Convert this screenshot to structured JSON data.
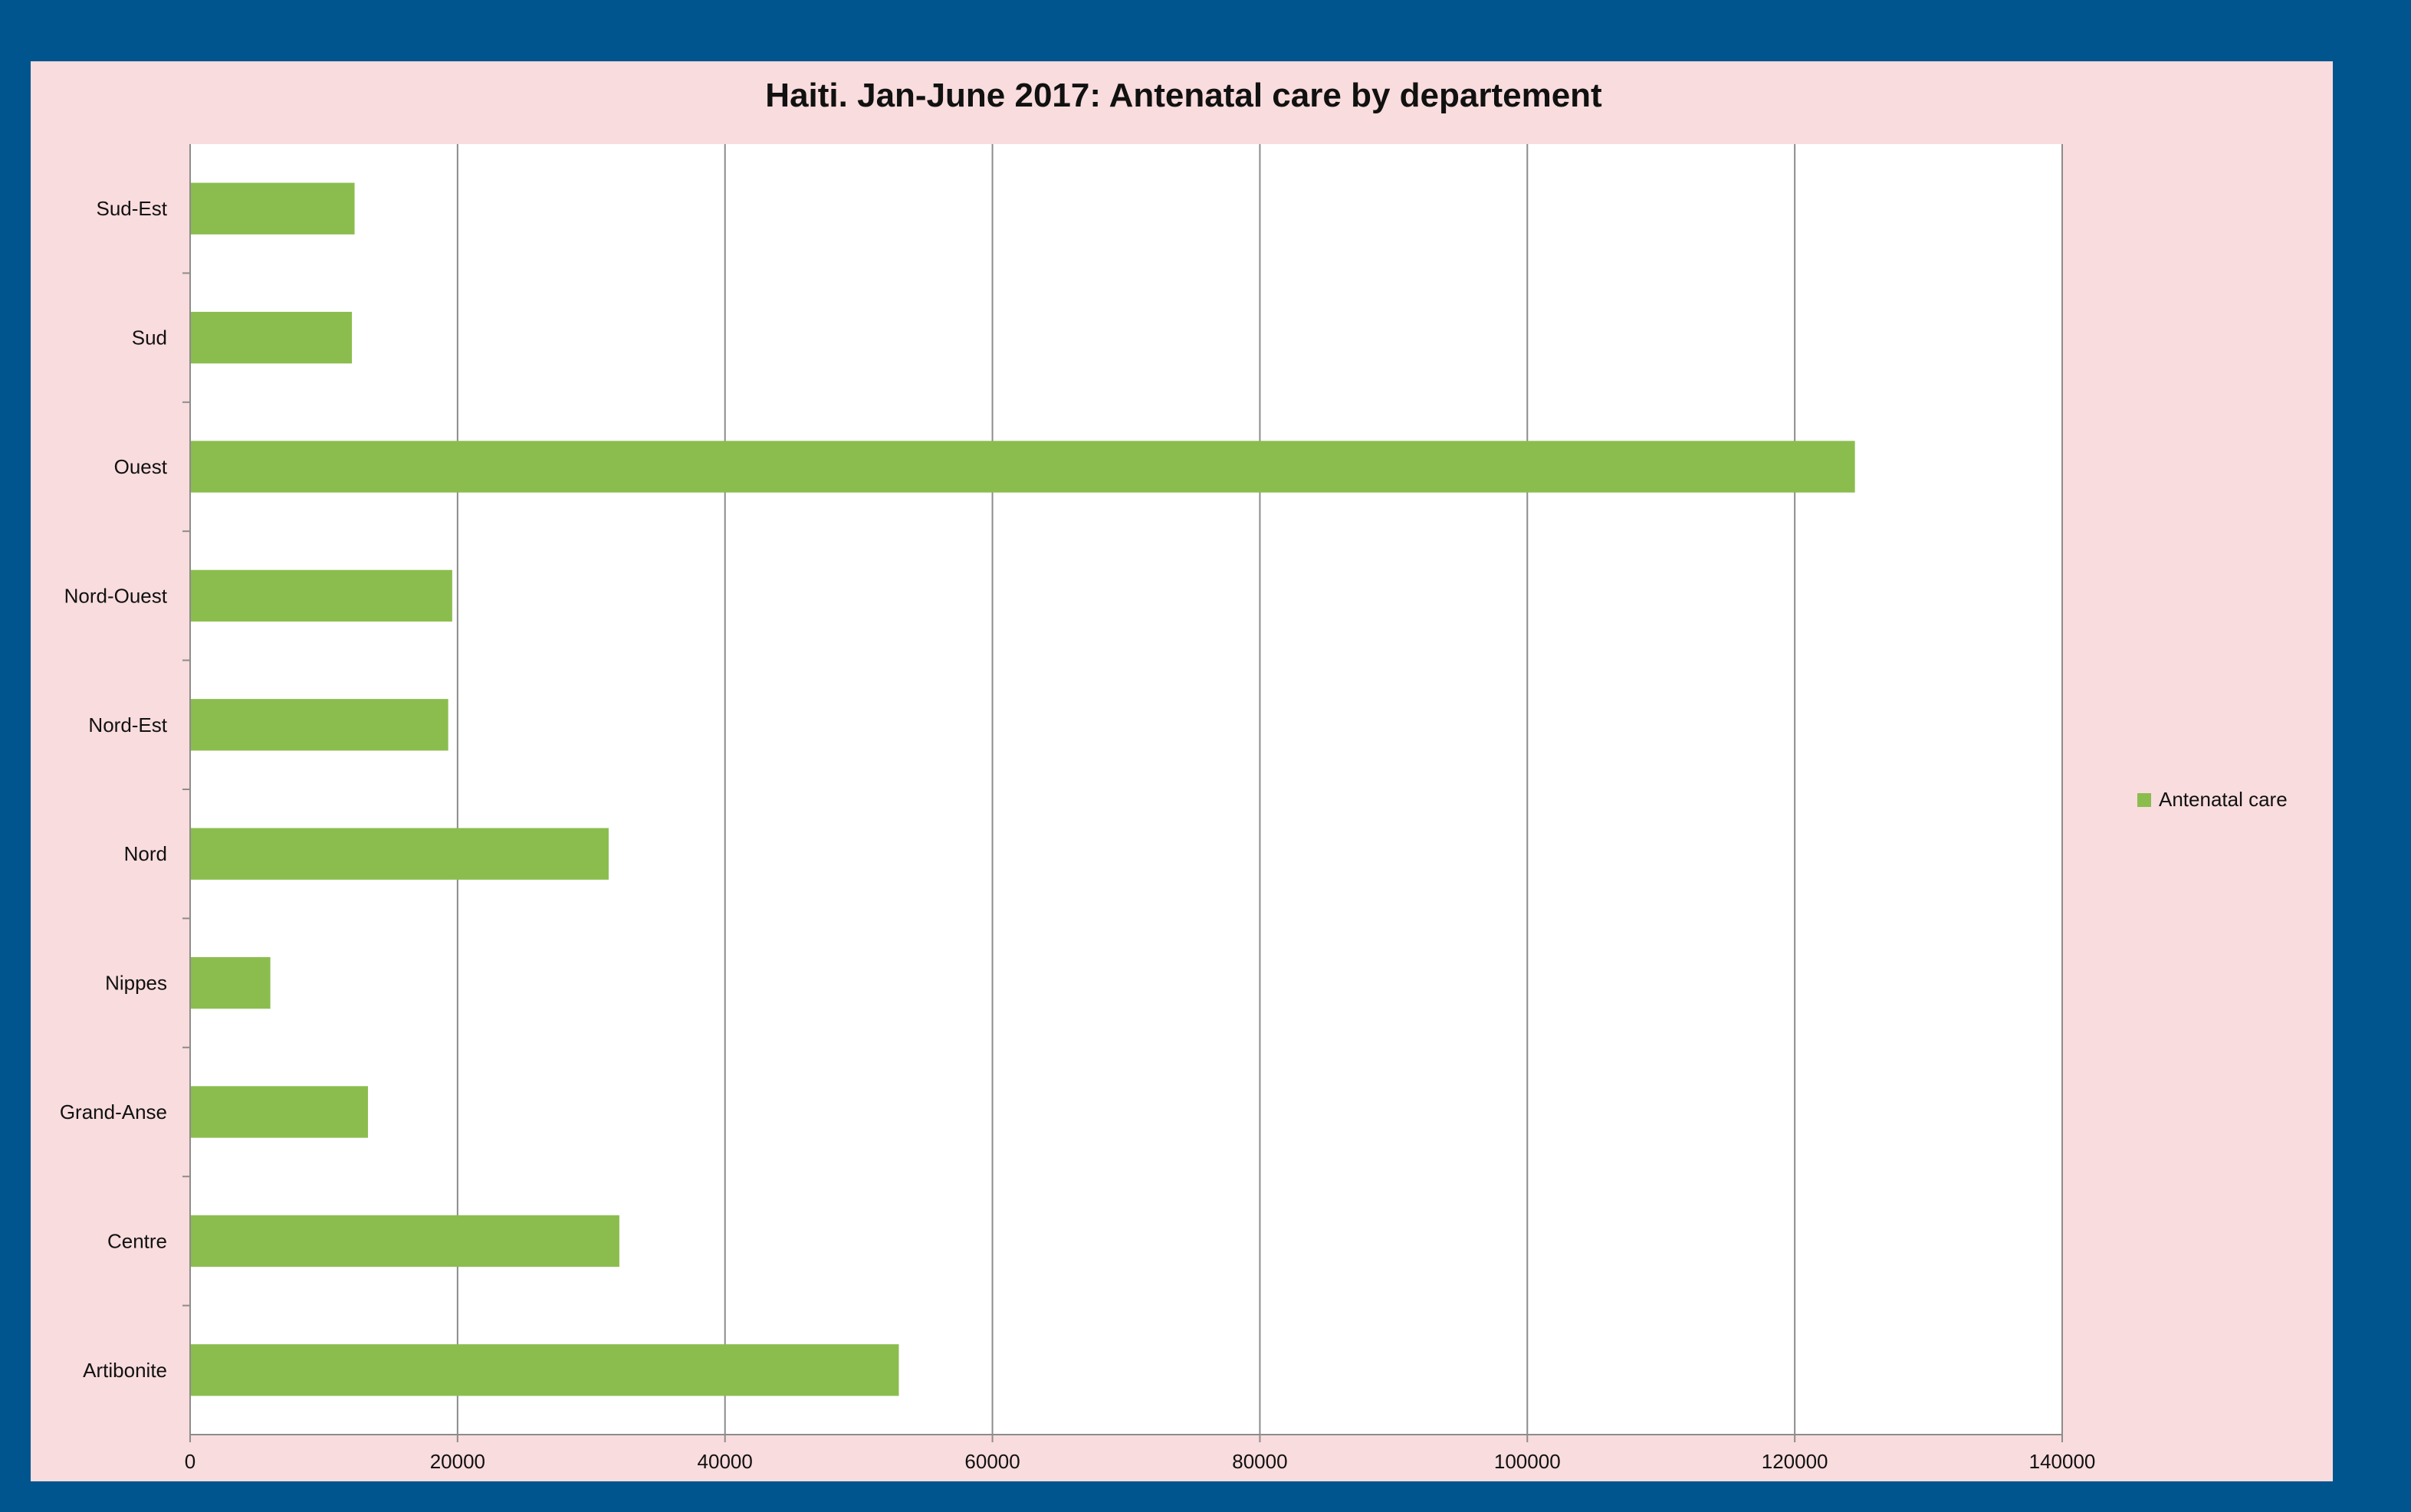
{
  "chart_data": {
    "type": "bar",
    "orientation": "horizontal",
    "title": "Haiti. Jan-June 2017: Antenatal care by departement",
    "categories": [
      "Sud-Est",
      "Sud",
      "Ouest",
      "Nord-Ouest",
      "Nord-Est",
      "Nord",
      "Nippes",
      "Grand-Anse",
      "Centre",
      "Artibonite"
    ],
    "series": [
      {
        "name": "Antenatal care",
        "color": "#8bbd4e",
        "values": [
          12300,
          12100,
          124500,
          19600,
          19300,
          31300,
          6000,
          13300,
          32100,
          53000
        ]
      }
    ],
    "xlim": [
      0,
      140000
    ],
    "x_ticks": [
      "0",
      "20000",
      "40000",
      "60000",
      "80000",
      "100000",
      "120000",
      "140000"
    ],
    "grid": "vertical",
    "legend_position": "right"
  }
}
